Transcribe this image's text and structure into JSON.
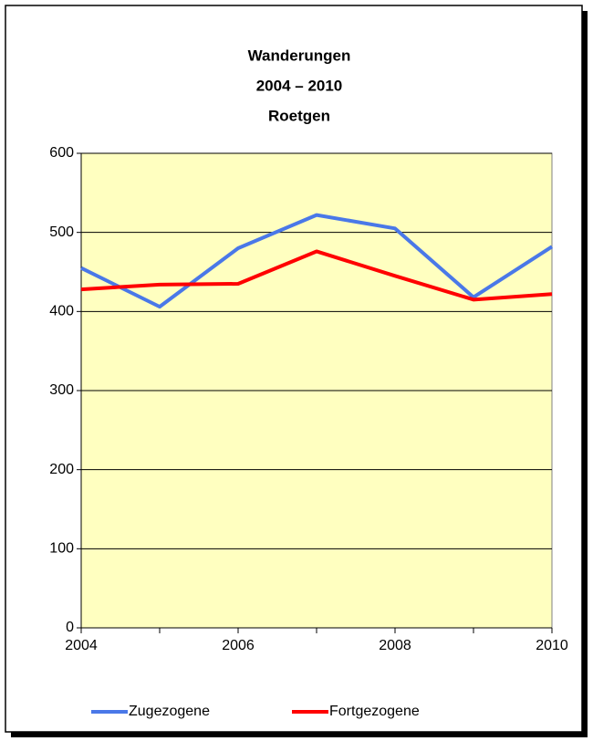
{
  "chart_data": {
    "type": "line",
    "title": [
      "Wanderungen",
      "2004 – 2010",
      "Roetgen"
    ],
    "x": [
      2004,
      2005,
      2006,
      2007,
      2008,
      2009,
      2010
    ],
    "series": [
      {
        "name": "Zugezogene",
        "color": "#4a78e8",
        "values": [
          455,
          406,
          480,
          522,
          505,
          418,
          482
        ]
      },
      {
        "name": "Fortgezogene",
        "color": "#ff0000",
        "values": [
          428,
          434,
          435,
          476,
          445,
          415,
          422
        ]
      }
    ],
    "xlim": [
      2004,
      2010
    ],
    "xticks": [
      2004,
      2006,
      2008,
      2010
    ],
    "ylim": [
      0,
      600
    ],
    "yticks": [
      0,
      100,
      200,
      300,
      400,
      500,
      600
    ],
    "grid": true,
    "legend": "bottom",
    "plot_background": "#ffffc0"
  }
}
